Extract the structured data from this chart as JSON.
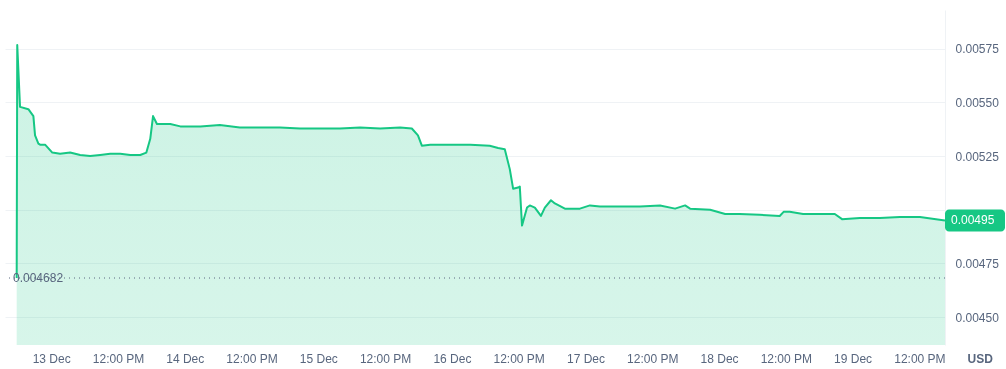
{
  "chart_data": {
    "type": "area",
    "ylabel": "USD",
    "x": [
      "--12-12T17:48",
      "--12-12T17:54",
      "--12-12T18:24",
      "--12-12T19:54",
      "--12-12T20:48",
      "--12-12T21:06",
      "--12-12T21:42",
      "--12-12T22:00",
      "--12-12T22:54",
      "--12-13T00:12",
      "--12-13T01:36",
      "--12-13T03:24",
      "--12-13T05:12",
      "--12-13T07:00",
      "--12-13T08:48",
      "--12-13T10:36",
      "--12-13T12:24",
      "--12-13T14:12",
      "--12-13T16:00",
      "--12-13T17:06",
      "--12-13T17:48",
      "--12-13T18:18",
      "--12-13T19:00",
      "--12-13T21:24",
      "--12-13T23:12",
      "--12-14T02:48",
      "--12-14T06:18",
      "--12-14T09:54",
      "--12-14T13:30",
      "--12-14T17:06",
      "--12-14T20:42",
      "--12-15T00:18",
      "--12-15T03:54",
      "--12-15T07:30",
      "--12-15T11:06",
      "--12-15T14:42",
      "--12-15T16:48",
      "--12-15T17:54",
      "--12-15T18:36",
      "--12-15T20:06",
      "--12-15T23:42",
      "--12-16T03:18",
      "--12-16T06:48",
      "--12-16T08:18",
      "--12-16T09:30",
      "--12-16T10:24",
      "--12-16T11:00",
      "--12-16T11:54",
      "--12-16T12:12",
      "--12-16T12:36",
      "--12-16T13:30",
      "--12-16T14:00",
      "--12-16T14:54",
      "--12-16T16:00",
      "--12-16T16:42",
      "--12-16T17:48",
      "--12-16T18:30",
      "--12-16T20:18",
      "--12-16T23:00",
      "--12-17T00:48",
      "--12-17T02:36",
      "--12-17T06:12",
      "--12-17T09:48",
      "--12-17T13:24",
      "--12-17T16:06",
      "--12-17T17:54",
      "--12-17T18:48",
      "--12-17T22:24",
      "--12-18T01:06",
      "--12-18T03:42",
      "--12-18T07:18",
      "--12-18T10:54",
      "--12-18T11:36",
      "--12-18T12:42",
      "--12-18T15:06",
      "--12-18T18:06",
      "--12-18T20:48",
      "--12-18T22:06",
      "--12-19T01:18",
      "--12-19T04:54",
      "--12-19T08:30",
      "--12-19T12:06",
      "--12-19T16:36"
    ],
    "series": [
      {
        "color": "#16c784",
        "values": [
          0.004682,
          0.005767,
          0.005479,
          0.005468,
          0.005436,
          0.005346,
          0.005308,
          0.005303,
          0.005303,
          0.005266,
          0.005261,
          0.005266,
          0.005255,
          0.00525,
          0.005255,
          0.005261,
          0.005261,
          0.005255,
          0.005255,
          0.005266,
          0.00533,
          0.005436,
          0.005399,
          0.005399,
          0.005388,
          0.005388,
          0.005394,
          0.005383,
          0.005383,
          0.005383,
          0.005378,
          0.005378,
          0.005378,
          0.005383,
          0.005378,
          0.005383,
          0.005378,
          0.005346,
          0.005298,
          0.005303,
          0.005303,
          0.005303,
          0.005298,
          0.005287,
          0.005282,
          0.005189,
          0.005098,
          0.005103,
          0.005108,
          0.004926,
          0.00501,
          0.00502,
          0.00501,
          0.004971,
          0.00501,
          0.005044,
          0.005029,
          0.005005,
          0.005005,
          0.00502,
          0.005015,
          0.005015,
          0.005015,
          0.00502,
          0.005005,
          0.00502,
          0.005005,
          0.005,
          0.00498,
          0.00498,
          0.004976,
          0.004971,
          0.00499,
          0.00499,
          0.00498,
          0.00498,
          0.00498,
          0.004956,
          0.004961,
          0.004961,
          0.004966,
          0.004966,
          0.00495
        ]
      }
    ],
    "xlim": [
      "--12-12T15:42",
      "--12-19T16:36"
    ],
    "xticks": [
      {
        "value": "--12-13",
        "label": "13 Dec"
      },
      {
        "value": "--12-13T12:00",
        "label": "12:00 PM"
      },
      {
        "value": "--12-14",
        "label": "14 Dec"
      },
      {
        "value": "--12-14T12:00",
        "label": "12:00 PM"
      },
      {
        "value": "--12-15",
        "label": "15 Dec"
      },
      {
        "value": "--12-15T12:00",
        "label": "12:00 PM"
      },
      {
        "value": "--12-16",
        "label": "16 Dec"
      },
      {
        "value": "--12-16T12:00",
        "label": "12:00 PM"
      },
      {
        "value": "--12-17",
        "label": "17 Dec"
      },
      {
        "value": "--12-17T12:00",
        "label": "12:00 PM"
      },
      {
        "value": "--12-18",
        "label": "18 Dec"
      },
      {
        "value": "--12-18T12:00",
        "label": "12:00 PM"
      },
      {
        "value": "--12-19",
        "label": "19 Dec"
      },
      {
        "value": "--12-19T12:00",
        "label": "12:00 PM"
      }
    ],
    "ylim": [
      0.00437,
      0.00593
    ],
    "yticks": [
      {
        "value": 0.0045,
        "label": "0.00450"
      },
      {
        "value": 0.00475,
        "label": "0.00475"
      },
      {
        "value": 0.005,
        "label": null
      },
      {
        "value": 0.00525,
        "label": "0.00525"
      },
      {
        "value": 0.0055,
        "label": "0.00550"
      },
      {
        "value": 0.00575,
        "label": "0.00575"
      }
    ],
    "grid": "y",
    "ref_lines": [
      {
        "axis": "y",
        "value": 0.004682,
        "label": "0.004682",
        "line_style": "dotted"
      }
    ],
    "annotations": [
      {
        "text": "0.00495",
        "x": "--12-19T16:36",
        "y": 0.00495
      }
    ]
  }
}
